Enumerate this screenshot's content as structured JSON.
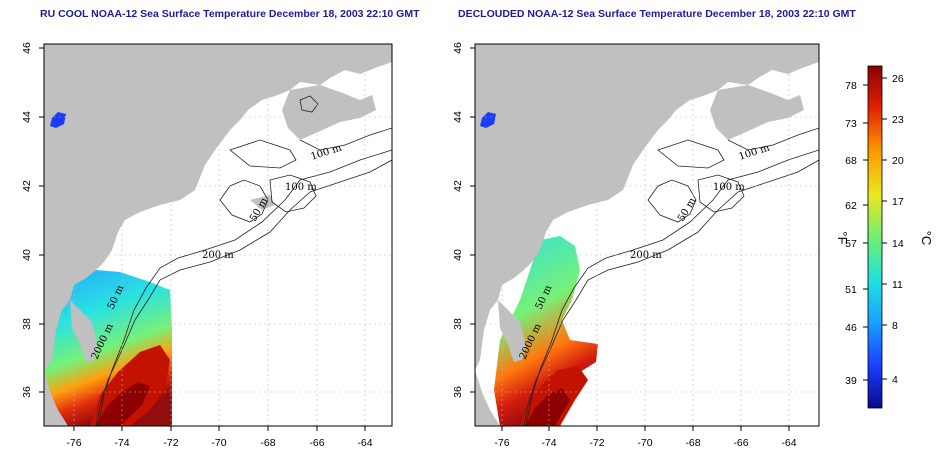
{
  "panels": [
    {
      "id": "left",
      "title": "RU COOL NOAA-12 Sea Surface Temperature December 18, 2003 22:10 GMT"
    },
    {
      "id": "right",
      "title": "DECLOUDED NOAA-12 Sea Surface Temperature December 18, 2003 22:10 GMT"
    }
  ],
  "map": {
    "lon_ticks": [
      "-76",
      "-74",
      "-72",
      "-70",
      "-68",
      "-66",
      "-64"
    ],
    "lat_ticks": [
      "46",
      "44",
      "42",
      "40",
      "38",
      "36"
    ],
    "lon_range": [
      -77,
      -63
    ],
    "lat_range": [
      35,
      46
    ],
    "contour_labels": [
      "100 m",
      "100 m",
      "50 m",
      "200 m",
      "50 m",
      "2000 m"
    ],
    "land_color": "#c0c0c0",
    "ocean_color": "#ffffff",
    "grid": true
  },
  "colorbar": {
    "fahrenheit_ticks": [
      "78",
      "73",
      "68",
      "62",
      "57",
      "51",
      "46",
      "39"
    ],
    "celsius_ticks": [
      "26",
      "23",
      "20",
      "17",
      "14",
      "11",
      "8",
      "4"
    ],
    "fahrenheit_unit": "°F",
    "celsius_unit": "°C",
    "colors": [
      "#0a0a8c",
      "#1a3cff",
      "#1aa0ff",
      "#20e0e0",
      "#70f070",
      "#e8e820",
      "#ff9a00",
      "#e02000",
      "#8c0000"
    ]
  }
}
